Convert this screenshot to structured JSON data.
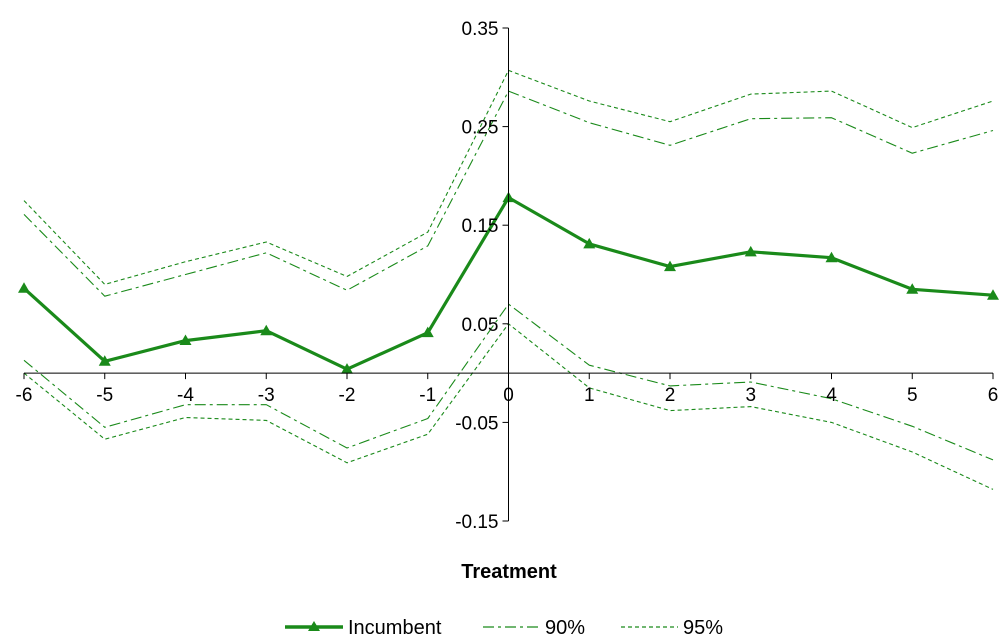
{
  "chart_data": {
    "type": "line",
    "title": "",
    "xlabel": "Treatment",
    "ylabel": "",
    "x": [
      -6,
      -5,
      -4,
      -3,
      -2,
      -1,
      0,
      1,
      2,
      3,
      4,
      5,
      6
    ],
    "x_tick_labels": [
      "-6",
      "-5",
      "-4",
      "-3",
      "-2",
      "-1",
      "0",
      "1",
      "2",
      "3",
      "4",
      "5",
      "6"
    ],
    "y_tick_values": [
      0.35,
      0.25,
      0.15,
      0.05,
      -0.05,
      -0.15
    ],
    "y_tick_labels": [
      "0.35",
      "0.25",
      "0.15",
      "0.05",
      "-0.05",
      "-0.15"
    ],
    "ylim": [
      -0.15,
      0.35
    ],
    "xlim": [
      -6,
      6
    ],
    "grid": false,
    "legend_position": "bottom",
    "series": [
      {
        "name": "Incumbent",
        "role": "estimate",
        "color": "#1a8a1a",
        "values": [
          0.086,
          0.012,
          0.033,
          0.043,
          0.004,
          0.041,
          0.178,
          0.131,
          0.108,
          0.123,
          0.117,
          0.085,
          0.079
        ]
      },
      {
        "name": "90%",
        "role": "upper",
        "color": "#1a8a1a",
        "values": [
          0.161,
          0.078,
          0.1,
          0.122,
          0.084,
          0.129,
          0.286,
          0.254,
          0.231,
          0.258,
          0.259,
          0.223,
          0.246
        ]
      },
      {
        "name": "90%",
        "role": "lower",
        "color": "#1a8a1a",
        "values": [
          0.013,
          -0.055,
          -0.032,
          -0.032,
          -0.076,
          -0.046,
          0.07,
          0.008,
          -0.013,
          -0.009,
          -0.026,
          -0.054,
          -0.088
        ]
      },
      {
        "name": "95%",
        "role": "upper",
        "color": "#1a8a1a",
        "values": [
          0.175,
          0.09,
          0.113,
          0.133,
          0.098,
          0.143,
          0.307,
          0.276,
          0.255,
          0.283,
          0.286,
          0.249,
          0.276
        ]
      },
      {
        "name": "95%",
        "role": "lower",
        "color": "#1a8a1a",
        "values": [
          0.0,
          -0.067,
          -0.045,
          -0.048,
          -0.091,
          -0.062,
          0.05,
          -0.015,
          -0.038,
          -0.034,
          -0.05,
          -0.08,
          -0.118
        ]
      }
    ]
  },
  "legend": {
    "incumbent": "Incumbent",
    "ci90": "90%",
    "ci95": "95%"
  }
}
